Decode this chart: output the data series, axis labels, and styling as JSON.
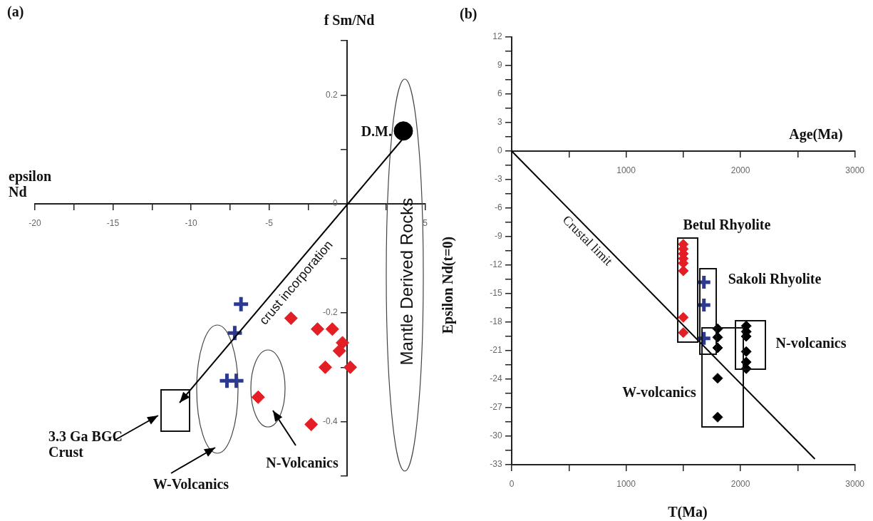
{
  "chart_data": [
    {
      "type": "scatter",
      "title": "(a)",
      "xlabel": "epsilon Nd",
      "ylabel": "f Sm/Nd",
      "xlim": [
        -20,
        5
      ],
      "ylim": [
        -0.5,
        0.3
      ],
      "xticks": [
        -20,
        {
          "value": -17.5,
          "label": null
        },
        -15,
        {
          "value": -12.5,
          "label": null
        },
        -10,
        {
          "value": -7.5,
          "label": null
        },
        -5,
        {
          "value": -2.5,
          "label": null
        },
        {
          "value": 0,
          "label": null
        },
        {
          "value": 2.5,
          "label": null
        },
        5
      ],
      "yticks": [
        {
          "value": 0.3,
          "label": null
        },
        0.2,
        {
          "value": 0.1,
          "label": null
        },
        0,
        {
          "value": -0.1,
          "label": null
        },
        -0.2,
        {
          "value": -0.3,
          "label": null
        },
        -0.4,
        {
          "value": -0.5,
          "label": null
        }
      ],
      "series": [
        {
          "marker": "circle",
          "color": "#000000",
          "x": [
            3.6
          ],
          "values": [
            0.134
          ]
        },
        {
          "marker": "cross",
          "color": "#2b3990",
          "x": [
            -6.8,
            -7.2,
            -7.7,
            -7.1
          ],
          "values": [
            -0.184,
            -0.237,
            -0.325,
            -0.325
          ]
        },
        {
          "marker": "diamond",
          "color": "#e31e24",
          "x": [
            -3.6,
            -1.9,
            -0.95,
            -0.3,
            -0.5,
            -1.4,
            0.2,
            -5.7,
            -2.3
          ],
          "values": [
            -0.21,
            -0.23,
            -0.23,
            -0.255,
            -0.27,
            -0.3,
            -0.3,
            -0.355,
            -0.405
          ]
        }
      ],
      "annotations": [
        {
          "text": "D.M.",
          "x": 3.6,
          "y": 0.134
        },
        "Mantle Derived Rocks",
        "crust incorporation",
        "3.3 Ga BGC Crust",
        "W-Volcanics",
        "N-Volcanics"
      ]
    },
    {
      "type": "scatter",
      "title": "(b)",
      "xlabel": "T(Ma)",
      "x2label": "Age(Ma)",
      "ylabel": "Epsilon Nd(t=0)",
      "xlim": [
        0,
        3000
      ],
      "x2lim": [
        0,
        3000
      ],
      "ylim": [
        -33,
        12
      ],
      "xticks": [
        0,
        {
          "value": 500,
          "label": null
        },
        1000,
        {
          "value": 1500,
          "label": null
        },
        2000,
        {
          "value": 2500,
          "label": null
        },
        3000
      ],
      "x2ticks": [
        {
          "value": 500,
          "label": null
        },
        1000,
        {
          "value": 1500,
          "label": null
        },
        2000,
        {
          "value": 2500,
          "label": null
        },
        3000
      ],
      "yticks": [
        12,
        {
          "value": 10.5,
          "label": null
        },
        9,
        {
          "value": 7.5,
          "label": null
        },
        6,
        {
          "value": 4.5,
          "label": null
        },
        3,
        {
          "value": 1.5,
          "label": null
        },
        0,
        {
          "value": -1.5,
          "label": null
        },
        -3,
        {
          "value": -4.5,
          "label": null
        },
        -6,
        {
          "value": -7.5,
          "label": null
        },
        -9,
        {
          "value": -10.5,
          "label": null
        },
        -12,
        {
          "value": -13.5,
          "label": null
        },
        -15,
        {
          "value": -16.5,
          "label": null
        },
        -18,
        {
          "value": -19.5,
          "label": null
        },
        -21,
        {
          "value": -22.5,
          "label": null
        },
        -24,
        {
          "value": -25.5,
          "label": null
        },
        -27,
        {
          "value": -28.5,
          "label": null
        },
        -30,
        {
          "value": -31.5,
          "label": null
        },
        -33
      ],
      "series": [
        {
          "marker": "diamond",
          "color": "#e31e24",
          "x": [
            1500,
            1500,
            1500,
            1500,
            1500,
            1500,
            1500,
            1500
          ],
          "values": [
            -9.8,
            -10.3,
            -10.8,
            -11.3,
            -11.8,
            -12.6,
            -17.5,
            -19.1
          ]
        },
        {
          "marker": "cross",
          "color": "#2b3990",
          "x": [
            1680,
            1680,
            1680
          ],
          "values": [
            -13.8,
            -16.2,
            -19.7
          ]
        },
        {
          "marker": "diamond",
          "color": "#000000",
          "x": [
            1800,
            1800,
            1800,
            1800,
            1800
          ],
          "values": [
            -18.7,
            -19.6,
            -20.7,
            -23.9,
            -28.0
          ]
        },
        {
          "marker": "diamond",
          "color": "#000000",
          "x": [
            2050,
            2050,
            2050,
            2050,
            2050,
            2050
          ],
          "values": [
            -18.4,
            -19.0,
            -19.5,
            -21.1,
            -22.2,
            -22.9
          ]
        },
        {
          "type": "line",
          "marker": "none",
          "color": "#000000",
          "x": [
            0,
            2650
          ],
          "values": [
            0,
            -32.4
          ]
        }
      ],
      "annotations": [
        "Betul Rhyolite",
        "Sakoli Rhyolite",
        "N-volcanics",
        "W-volcanics",
        "Crustal limit"
      ]
    }
  ]
}
